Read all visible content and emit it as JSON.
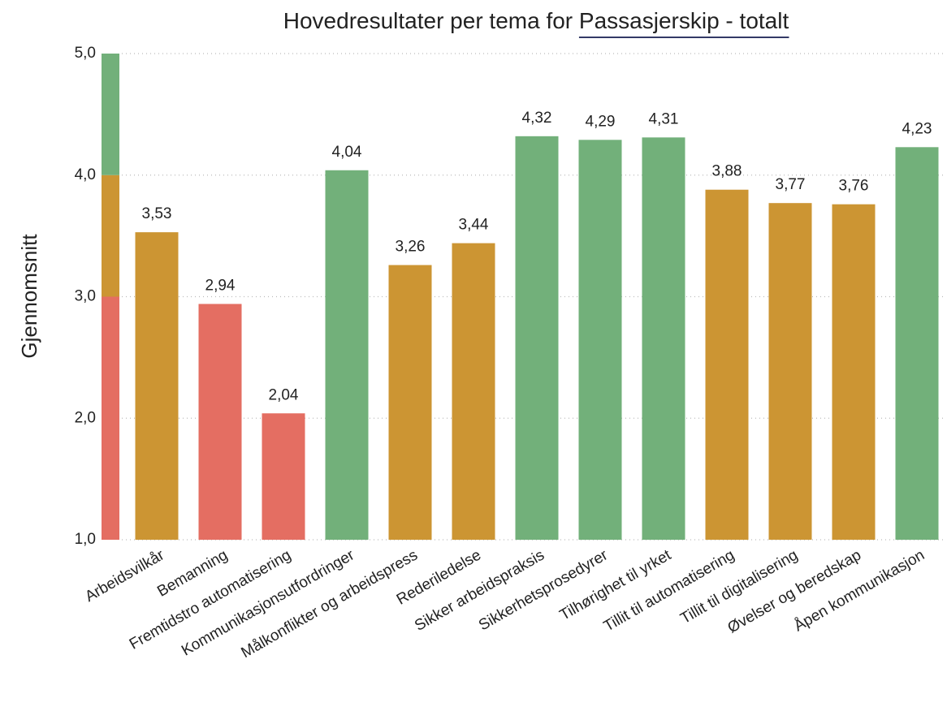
{
  "chart_data": {
    "type": "bar",
    "title": "Hovedresultater per tema for",
    "filter": "Passasjerskip - totalt",
    "y_label": "Gjennomsnitt",
    "categories": [
      "Arbeidsvilkår",
      "Bemanning",
      "Fremtidstro automatisering",
      "Kommunikasjonsutfordringer",
      "Målkonflikter og arbeidspress",
      "Rederiledelse",
      "Sikker arbeidspraksis",
      "Sikkerhetsprosedyrer",
      "Tilhørighet til yrket",
      "Tillit til automatisering",
      "Tillit til digitalisering",
      "Øvelser og beredskap",
      "Åpen kommunikasjon"
    ],
    "values": [
      3.53,
      2.94,
      2.04,
      4.04,
      3.26,
      3.44,
      4.32,
      4.29,
      4.31,
      3.88,
      3.77,
      3.76,
      4.23
    ],
    "value_labels": [
      "3,53",
      "2,94",
      "2,04",
      "4,04",
      "3,26",
      "3,44",
      "4,32",
      "4,29",
      "4,31",
      "3,88",
      "3,77",
      "3,76",
      "4,23"
    ],
    "colors": [
      "#cc9533",
      "#e46e62",
      "#e46e62",
      "#72b07a",
      "#cc9533",
      "#cc9533",
      "#72b07a",
      "#72b07a",
      "#72b07a",
      "#cc9533",
      "#cc9533",
      "#cc9533",
      "#72b07a"
    ],
    "color_bands": [
      {
        "from": 1,
        "to": 3,
        "color": "#e46e62"
      },
      {
        "from": 3,
        "to": 4,
        "color": "#cc9533"
      },
      {
        "from": 4,
        "to": 5,
        "color": "#72b07a"
      }
    ],
    "ylim": [
      1,
      5
    ],
    "yticks": [
      {
        "value": 1,
        "label": "1,0"
      },
      {
        "value": 2,
        "label": "2,0"
      },
      {
        "value": 3,
        "label": "3,0"
      },
      {
        "value": 4,
        "label": "4,0"
      },
      {
        "value": 5,
        "label": "5,0"
      }
    ],
    "grid": true
  }
}
